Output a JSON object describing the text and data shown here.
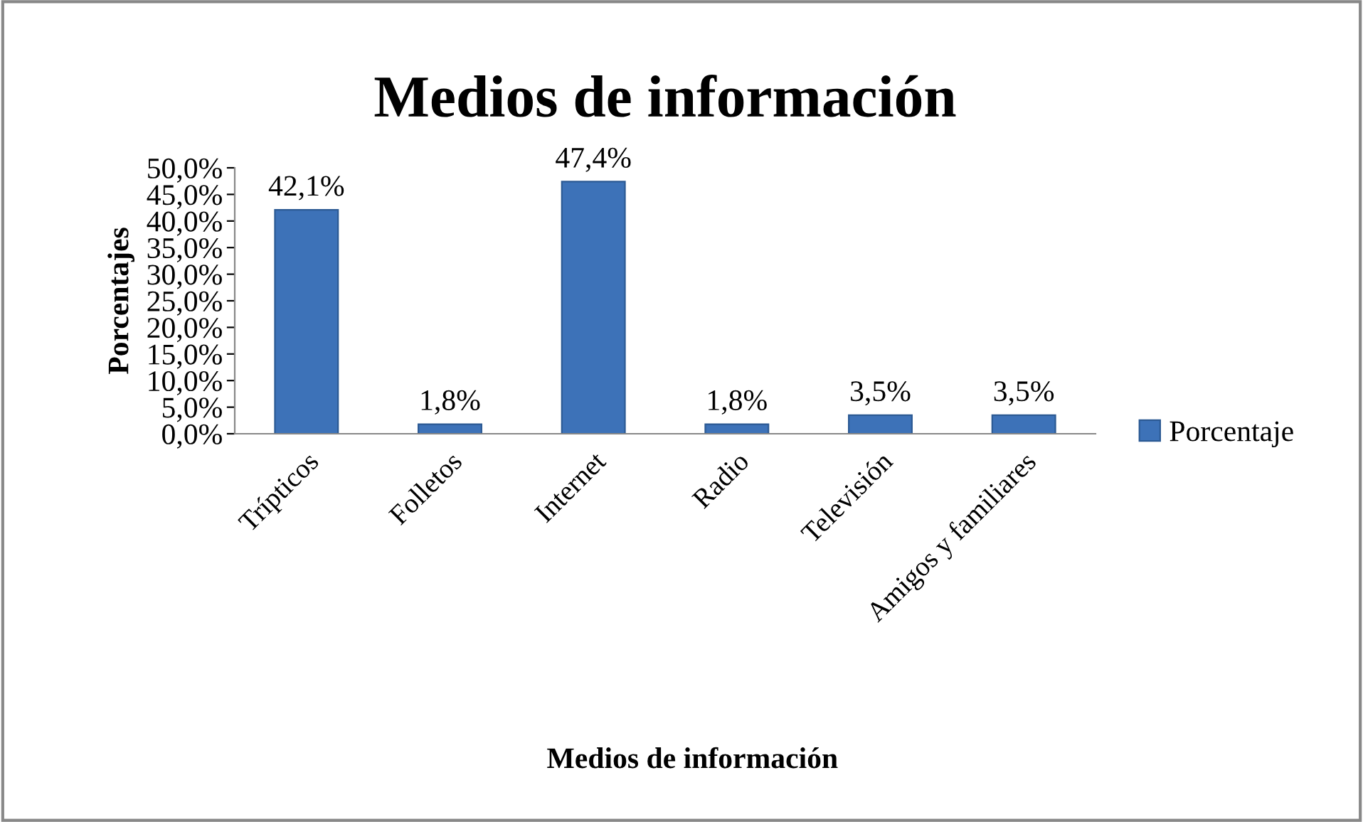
{
  "chart_data": {
    "type": "bar",
    "title": "Medios de información",
    "xlabel": "Medios de información",
    "ylabel": "Porcentajes",
    "categories": [
      "Trípticos",
      "Folletos",
      "Internet",
      "Radio",
      "Televisión",
      "Amigos y familiares"
    ],
    "series": [
      {
        "name": "Porcentaje",
        "color": "#3d72b8",
        "values": [
          42.1,
          1.8,
          47.4,
          1.8,
          3.5,
          3.5
        ],
        "value_labels": [
          "42,1%",
          "1,8%",
          "47,4%",
          "1,8%",
          "3,5%",
          "3,5%"
        ]
      }
    ],
    "ylim": [
      0,
      50
    ],
    "yticks": [
      {
        "value": 0,
        "label": "0,0%"
      },
      {
        "value": 5,
        "label": "5,0%"
      },
      {
        "value": 10,
        "label": "10,0%"
      },
      {
        "value": 15,
        "label": "15,0%"
      },
      {
        "value": 20,
        "label": "20,0%"
      },
      {
        "value": 25,
        "label": "25,0%"
      },
      {
        "value": 30,
        "label": "30,0%"
      },
      {
        "value": 35,
        "label": "35,0%"
      },
      {
        "value": 40,
        "label": "40,0%"
      },
      {
        "value": 45,
        "label": "45,0%"
      },
      {
        "value": 50,
        "label": "50,0%"
      }
    ],
    "grid": false,
    "legend": "right"
  }
}
